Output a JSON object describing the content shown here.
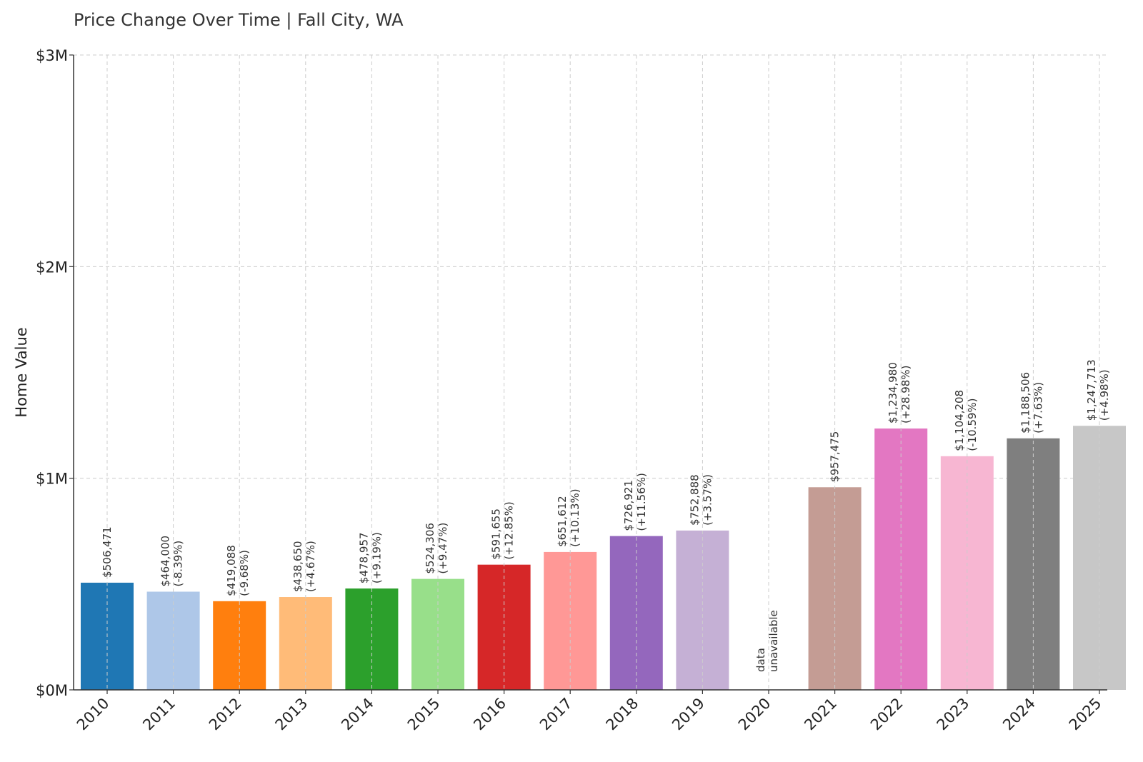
{
  "chart_data": {
    "type": "bar",
    "title": "Price Change Over Time | Fall City, WA",
    "xlabel": "",
    "ylabel": "Home Value",
    "ylim": [
      0,
      3000000
    ],
    "yticks": [
      {
        "value": 0,
        "label": "$0M"
      },
      {
        "value": 1000000,
        "label": "$1M"
      },
      {
        "value": 2000000,
        "label": "$2M"
      },
      {
        "value": 3000000,
        "label": "$3M"
      }
    ],
    "grid": true,
    "categories": [
      "2010",
      "2011",
      "2012",
      "2013",
      "2014",
      "2015",
      "2016",
      "2017",
      "2018",
      "2019",
      "2020",
      "2021",
      "2022",
      "2023",
      "2024",
      "2025"
    ],
    "values": [
      506471,
      464000,
      419088,
      438650,
      478957,
      524306,
      591655,
      651612,
      726921,
      752888,
      null,
      957475,
      1234980,
      1104208,
      1188506,
      1247713
    ],
    "value_labels": [
      "$506,471",
      "$464,000",
      "$419,088",
      "$438,650",
      "$478,957",
      "$524,306",
      "$591,655",
      "$651,612",
      "$726,921",
      "$752,888",
      "",
      "$957,475",
      "$1,234,980",
      "$1,104,208",
      "$1,188,506",
      "$1,247,713"
    ],
    "change_labels": [
      "",
      "(-8.39%)",
      "(-9.68%)",
      "(+4.67%)",
      "(+9.19%)",
      "(+9.47%)",
      "(+12.85%)",
      "(+10.13%)",
      "(+11.56%)",
      "(+3.57%)",
      "",
      "",
      "(+28.98%)",
      "(-10.59%)",
      "(+7.63%)",
      "(+4.98%)"
    ],
    "missing_label": [
      "data",
      "unavailable"
    ],
    "colors": [
      "#1f77b4",
      "#aec7e8",
      "#ff7f0e",
      "#ffbb78",
      "#2ca02c",
      "#98df8a",
      "#d62728",
      "#ff9896",
      "#9467bd",
      "#c5b0d5",
      "#8c564b",
      "#c49c94",
      "#e377c2",
      "#f7b6d2",
      "#7f7f7f",
      "#c7c7c7"
    ]
  }
}
